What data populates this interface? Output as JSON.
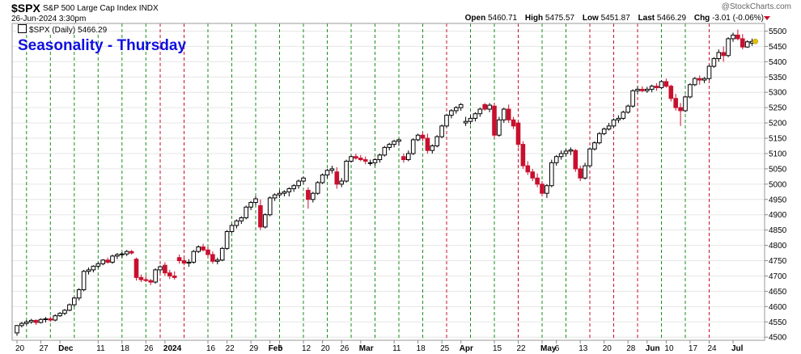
{
  "header": {
    "symbol": "$SPX",
    "description": "S&P 500 Large Cap Index  INDX",
    "date": "26-Jun-2024 3:30pm",
    "watermark": "@StockCharts.com",
    "open_label": "Open",
    "open": "5460.71",
    "high_label": "High",
    "high": "5475.57",
    "low_label": "Low",
    "low": "5451.87",
    "last_label": "Last",
    "last": "5466.29",
    "chg_label": "Chg",
    "chg": "-3.01 (-0.06%)"
  },
  "legend": "$SPX (Daily) 5466.29",
  "title": "Seasonality - Thursday",
  "colors": {
    "up": "#000000",
    "down": "#c8102e",
    "green_line": "#1a8f1a",
    "red_line": "#c8102e",
    "title": "#1010e0",
    "last_marker": "#e0c000"
  },
  "chart_data": {
    "type": "candlestick",
    "title": "Seasonality - Thursday",
    "y_axis": {
      "side": "right",
      "ylim": [
        4490,
        5525
      ],
      "ticks": [
        4500,
        4550,
        4600,
        4650,
        4700,
        4750,
        4800,
        4850,
        4900,
        4950,
        5000,
        5050,
        5100,
        5150,
        5200,
        5250,
        5300,
        5350,
        5400,
        5450,
        5500
      ]
    },
    "x_ticks": [
      {
        "i": 0,
        "label": "20"
      },
      {
        "i": 5,
        "label": "27"
      },
      {
        "i": 9,
        "label": "Dec"
      },
      {
        "i": 17,
        "label": "11"
      },
      {
        "i": 22,
        "label": "18"
      },
      {
        "i": 27,
        "label": "26"
      },
      {
        "i": 31,
        "label": "2024"
      },
      {
        "i": 40,
        "label": "16"
      },
      {
        "i": 44,
        "label": "22"
      },
      {
        "i": 49,
        "label": "29"
      },
      {
        "i": 53,
        "label": "Feb"
      },
      {
        "i": 55,
        "label": "5"
      },
      {
        "i": 60,
        "label": "12"
      },
      {
        "i": 64,
        "label": "20"
      },
      {
        "i": 68,
        "label": "26"
      },
      {
        "i": 72,
        "label": "Mar"
      },
      {
        "i": 79,
        "label": "11"
      },
      {
        "i": 84,
        "label": "18"
      },
      {
        "i": 89,
        "label": "25"
      },
      {
        "i": 93,
        "label": "Apr"
      },
      {
        "i": 100,
        "label": "15"
      },
      {
        "i": 105,
        "label": "22"
      },
      {
        "i": 110,
        "label": "May"
      },
      {
        "i": 113,
        "label": "6"
      },
      {
        "i": 118,
        "label": "13"
      },
      {
        "i": 123,
        "label": "20"
      },
      {
        "i": 128,
        "label": "28"
      },
      {
        "i": 132,
        "label": "Jun"
      },
      {
        "i": 136,
        "label": "10"
      },
      {
        "i": 141,
        "label": "17"
      },
      {
        "i": 145,
        "label": "24"
      },
      {
        "i": 150,
        "label": "Jul"
      }
    ],
    "thursday_lines": [
      {
        "i": 2,
        "color": "green"
      },
      {
        "i": 7,
        "color": "green"
      },
      {
        "i": 12,
        "color": "green"
      },
      {
        "i": 17,
        "color": "green"
      },
      {
        "i": 22,
        "color": "green"
      },
      {
        "i": 27,
        "color": "green"
      },
      {
        "i": 30,
        "color": "red"
      },
      {
        "i": 35,
        "color": "red"
      },
      {
        "i": 40,
        "color": "green"
      },
      {
        "i": 45,
        "color": "green"
      },
      {
        "i": 50,
        "color": "green"
      },
      {
        "i": 55,
        "color": "green"
      },
      {
        "i": 60,
        "color": "green"
      },
      {
        "i": 65,
        "color": "green"
      },
      {
        "i": 70,
        "color": "green"
      },
      {
        "i": 75,
        "color": "green"
      },
      {
        "i": 80,
        "color": "green"
      },
      {
        "i": 85,
        "color": "green"
      },
      {
        "i": 90,
        "color": "red"
      },
      {
        "i": 95,
        "color": "green"
      },
      {
        "i": 100,
        "color": "green"
      },
      {
        "i": 105,
        "color": "red"
      },
      {
        "i": 110,
        "color": "green"
      },
      {
        "i": 115,
        "color": "green"
      },
      {
        "i": 120,
        "color": "red"
      },
      {
        "i": 125,
        "color": "red"
      },
      {
        "i": 130,
        "color": "red"
      },
      {
        "i": 135,
        "color": "green"
      },
      {
        "i": 140,
        "color": "green"
      },
      {
        "i": 145,
        "color": "red"
      }
    ],
    "candles": [
      [
        4514,
        4540,
        4505,
        4538
      ],
      [
        4538,
        4550,
        4532,
        4545
      ],
      [
        4545,
        4556,
        4540,
        4550
      ],
      [
        4550,
        4560,
        4544,
        4555
      ],
      [
        4555,
        4558,
        4540,
        4548
      ],
      [
        4548,
        4562,
        4545,
        4558
      ],
      [
        4558,
        4566,
        4548,
        4560
      ],
      [
        4560,
        4568,
        4550,
        4556
      ],
      [
        4556,
        4575,
        4552,
        4570
      ],
      [
        4570,
        4582,
        4566,
        4578
      ],
      [
        4578,
        4592,
        4572,
        4588
      ],
      [
        4588,
        4610,
        4585,
        4606
      ],
      [
        4606,
        4632,
        4600,
        4628
      ],
      [
        4628,
        4660,
        4620,
        4655
      ],
      [
        4655,
        4720,
        4650,
        4715
      ],
      [
        4715,
        4728,
        4705,
        4720
      ],
      [
        4720,
        4735,
        4712,
        4732
      ],
      [
        4732,
        4745,
        4725,
        4740
      ],
      [
        4740,
        4755,
        4735,
        4752
      ],
      [
        4752,
        4760,
        4740,
        4745
      ],
      [
        4745,
        4770,
        4740,
        4765
      ],
      [
        4765,
        4775,
        4755,
        4770
      ],
      [
        4770,
        4778,
        4760,
        4772
      ],
      [
        4772,
        4785,
        4765,
        4780
      ],
      [
        4780,
        4785,
        4770,
        4775
      ],
      [
        4755,
        4760,
        4685,
        4695
      ],
      [
        4695,
        4705,
        4680,
        4688
      ],
      [
        4688,
        4700,
        4680,
        4685
      ],
      [
        4685,
        4690,
        4670,
        4680
      ],
      [
        4680,
        4725,
        4675,
        4720
      ],
      [
        4720,
        4735,
        4710,
        4730
      ],
      [
        4735,
        4745,
        4700,
        4710
      ],
      [
        4710,
        4720,
        4690,
        4700
      ],
      [
        4700,
        4715,
        4688,
        4695
      ],
      [
        4760,
        4770,
        4740,
        4750
      ],
      [
        4750,
        4760,
        4735,
        4742
      ],
      [
        4742,
        4755,
        4730,
        4745
      ],
      [
        4745,
        4785,
        4740,
        4780
      ],
      [
        4780,
        4800,
        4775,
        4795
      ],
      [
        4795,
        4805,
        4780,
        4785
      ],
      [
        4785,
        4795,
        4760,
        4770
      ],
      [
        4770,
        4780,
        4740,
        4748
      ],
      [
        4748,
        4760,
        4738,
        4752
      ],
      [
        4752,
        4795,
        4748,
        4790
      ],
      [
        4790,
        4850,
        4785,
        4845
      ],
      [
        4845,
        4870,
        4840,
        4865
      ],
      [
        4865,
        4885,
        4855,
        4880
      ],
      [
        4880,
        4895,
        4870,
        4890
      ],
      [
        4890,
        4930,
        4885,
        4925
      ],
      [
        4925,
        4945,
        4915,
        4940
      ],
      [
        4940,
        4960,
        4930,
        4952
      ],
      [
        4930,
        4950,
        4850,
        4860
      ],
      [
        4860,
        4905,
        4855,
        4900
      ],
      [
        4900,
        4960,
        4895,
        4955
      ],
      [
        4955,
        4970,
        4945,
        4965
      ],
      [
        4965,
        4980,
        4955,
        4970
      ],
      [
        4970,
        4980,
        4960,
        4975
      ],
      [
        4975,
        4990,
        4960,
        4985
      ],
      [
        4985,
        5000,
        4975,
        4995
      ],
      [
        4995,
        5015,
        4985,
        5010
      ],
      [
        5010,
        5025,
        5000,
        5020
      ],
      [
        4980,
        4990,
        4920,
        4950
      ],
      [
        4950,
        4975,
        4940,
        4970
      ],
      [
        4970,
        5010,
        4965,
        5005
      ],
      [
        5005,
        5035,
        5000,
        5030
      ],
      [
        5030,
        5050,
        5020,
        5045
      ],
      [
        5045,
        5060,
        5035,
        5050
      ],
      [
        5040,
        5055,
        4985,
        5000
      ],
      [
        5000,
        5020,
        4990,
        5010
      ],
      [
        5010,
        5080,
        5005,
        5075
      ],
      [
        5075,
        5095,
        5070,
        5090
      ],
      [
        5090,
        5100,
        5080,
        5085
      ],
      [
        5085,
        5095,
        5075,
        5080
      ],
      [
        5080,
        5090,
        5065,
        5075
      ],
      [
        5070,
        5080,
        5060,
        5070
      ],
      [
        5070,
        5085,
        5060,
        5080
      ],
      [
        5080,
        5100,
        5070,
        5095
      ],
      [
        5095,
        5125,
        5090,
        5120
      ],
      [
        5120,
        5135,
        5110,
        5130
      ],
      [
        5130,
        5145,
        5120,
        5140
      ],
      [
        5140,
        5150,
        5125,
        5145
      ],
      [
        5090,
        5100,
        5070,
        5080
      ],
      [
        5080,
        5110,
        5075,
        5100
      ],
      [
        5100,
        5150,
        5095,
        5145
      ],
      [
        5145,
        5165,
        5140,
        5160
      ],
      [
        5160,
        5170,
        5140,
        5150
      ],
      [
        5150,
        5165,
        5100,
        5110
      ],
      [
        5110,
        5130,
        5100,
        5125
      ],
      [
        5125,
        5160,
        5120,
        5155
      ],
      [
        5155,
        5195,
        5150,
        5190
      ],
      [
        5190,
        5230,
        5185,
        5225
      ],
      [
        5225,
        5245,
        5215,
        5240
      ],
      [
        5240,
        5255,
        5230,
        5250
      ],
      [
        5250,
        5265,
        5240,
        5260
      ],
      [
        5200,
        5220,
        5190,
        5205
      ],
      [
        5205,
        5225,
        5195,
        5215
      ],
      [
        5215,
        5235,
        5205,
        5230
      ],
      [
        5230,
        5250,
        5220,
        5245
      ],
      [
        5260,
        5265,
        5240,
        5245
      ],
      [
        5245,
        5265,
        5235,
        5258
      ],
      [
        5255,
        5265,
        5150,
        5160
      ],
      [
        5160,
        5220,
        5155,
        5210
      ],
      [
        5210,
        5250,
        5200,
        5245
      ],
      [
        5245,
        5260,
        5200,
        5210
      ],
      [
        5210,
        5220,
        5180,
        5190
      ],
      [
        5200,
        5210,
        5120,
        5130
      ],
      [
        5130,
        5140,
        5050,
        5060
      ],
      [
        5060,
        5075,
        5030,
        5040
      ],
      [
        5040,
        5050,
        5010,
        5020
      ],
      [
        5020,
        5035,
        4990,
        5000
      ],
      [
        5000,
        5010,
        4960,
        4970
      ],
      [
        4970,
        5000,
        4955,
        4995
      ],
      [
        4995,
        5080,
        4990,
        5070
      ],
      [
        5070,
        5095,
        5060,
        5090
      ],
      [
        5090,
        5110,
        5080,
        5100
      ],
      [
        5100,
        5115,
        5090,
        5108
      ],
      [
        5108,
        5120,
        5095,
        5112
      ],
      [
        5110,
        5115,
        5040,
        5050
      ],
      [
        5050,
        5060,
        5010,
        5020
      ],
      [
        5020,
        5070,
        5015,
        5060
      ],
      [
        5060,
        5120,
        5055,
        5115
      ],
      [
        5115,
        5140,
        5110,
        5135
      ],
      [
        5135,
        5170,
        5130,
        5165
      ],
      [
        5165,
        5185,
        5160,
        5180
      ],
      [
        5180,
        5200,
        5175,
        5190
      ],
      [
        5190,
        5215,
        5185,
        5210
      ],
      [
        5210,
        5225,
        5200,
        5215
      ],
      [
        5215,
        5240,
        5210,
        5235
      ],
      [
        5235,
        5260,
        5230,
        5255
      ],
      [
        5255,
        5310,
        5250,
        5305
      ],
      [
        5305,
        5320,
        5295,
        5310
      ],
      [
        5310,
        5320,
        5300,
        5305
      ],
      [
        5305,
        5318,
        5298,
        5310
      ],
      [
        5310,
        5325,
        5300,
        5320
      ],
      [
        5320,
        5330,
        5305,
        5315
      ],
      [
        5315,
        5340,
        5310,
        5335
      ],
      [
        5335,
        5345,
        5315,
        5320
      ],
      [
        5320,
        5325,
        5270,
        5280
      ],
      [
        5280,
        5295,
        5240,
        5250
      ],
      [
        5250,
        5265,
        5190,
        5240
      ],
      [
        5240,
        5290,
        5235,
        5285
      ],
      [
        5285,
        5330,
        5280,
        5325
      ],
      [
        5325,
        5350,
        5320,
        5345
      ],
      [
        5345,
        5355,
        5325,
        5340
      ],
      [
        5340,
        5350,
        5330,
        5345
      ],
      [
        5345,
        5390,
        5340,
        5385
      ],
      [
        5385,
        5415,
        5380,
        5410
      ],
      [
        5410,
        5440,
        5400,
        5430
      ],
      [
        5430,
        5450,
        5400,
        5420
      ],
      [
        5420,
        5480,
        5415,
        5475
      ],
      [
        5475,
        5495,
        5465,
        5487
      ],
      [
        5487,
        5505,
        5470,
        5475
      ],
      [
        5475,
        5490,
        5440,
        5448
      ],
      [
        5448,
        5470,
        5445,
        5465
      ],
      [
        5460.71,
        5475.57,
        5451.87,
        5466.29
      ]
    ]
  }
}
